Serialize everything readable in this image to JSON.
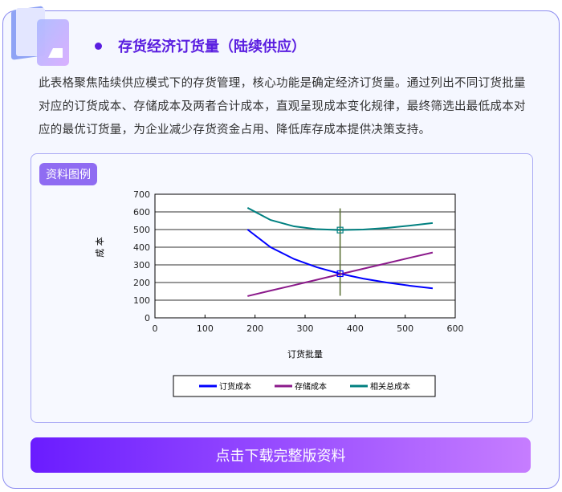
{
  "header": {
    "title": "存货经济订货量（陆续供应）",
    "description": "此表格聚焦陆续供应模式下的存货管理，核心功能是确定经济订货量。通过列出不同订货批量对应的订货成本、存储成本及两者合计成本，直观呈现成本变化规律，最终筛选出最低成本对应的最优订货量，为企业减少存货资金占用、降低库存成本提供决策支持。"
  },
  "panel": {
    "tag": "资料图例"
  },
  "download_button": "点击下载完整版资料",
  "chart_data": {
    "type": "line",
    "xlabel": "订货批量",
    "ylabel": "成 本",
    "xlim": [
      0,
      600
    ],
    "ylim": [
      0,
      700
    ],
    "xticks": [
      "0",
      "100",
      "200",
      "300",
      "400",
      "500",
      "600"
    ],
    "yticks": [
      "0",
      "100",
      "200",
      "300",
      "400",
      "500",
      "600",
      "700"
    ],
    "grid": "horizontal",
    "legend": "bottom",
    "x": [
      185,
      231,
      278,
      324,
      370,
      416,
      463,
      509,
      555
    ],
    "series": [
      {
        "name": "订货成本",
        "color": "#0000ff",
        "values": [
          500,
          400,
          333,
          286,
          250,
          222,
          200,
          182,
          167
        ]
      },
      {
        "name": "存储成本",
        "color": "#8b1a8b",
        "values": [
          123,
          154,
          185,
          216,
          247,
          278,
          309,
          340,
          370
        ]
      },
      {
        "name": "相关总成本",
        "color": "#008080",
        "values": [
          623,
          554,
          518,
          502,
          497,
          500,
          509,
          522,
          537
        ]
      }
    ],
    "optimal_line": {
      "x": 370,
      "y_range": [
        125,
        620
      ],
      "markers": [
        250,
        497
      ]
    }
  }
}
